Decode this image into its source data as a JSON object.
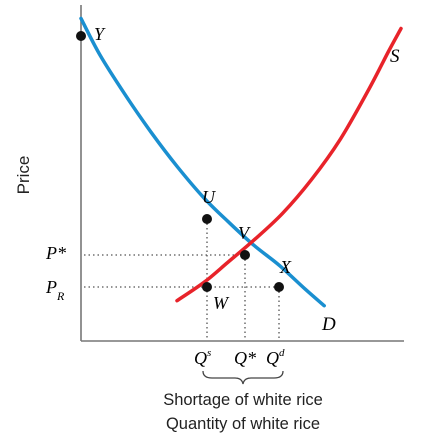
{
  "chart_data": {
    "type": "line",
    "title": "",
    "xlabel": "Quantity of white rice",
    "ylabel": "Price",
    "xlim": [
      0,
      10
    ],
    "ylim": [
      0,
      10
    ],
    "series": [
      {
        "name": "D",
        "color": "#1a8fd0",
        "points": [
          [
            0,
            9.6
          ],
          [
            0.6,
            8.5
          ],
          [
            1.4,
            7.3
          ],
          [
            2.2,
            6.2
          ],
          [
            3,
            5.2
          ],
          [
            3.85,
            4.25
          ],
          [
            4.6,
            3.55
          ],
          [
            5.4,
            2.85
          ],
          [
            6.2,
            2.25
          ],
          [
            7.0,
            1.55
          ],
          [
            7.6,
            1.05
          ]
        ]
      },
      {
        "name": "S",
        "color": "#e8232a",
        "points": [
          [
            3.0,
            1.2
          ],
          [
            3.85,
            1.75
          ],
          [
            4.6,
            2.35
          ],
          [
            5.4,
            3.0
          ],
          [
            6.3,
            3.8
          ],
          [
            7.2,
            4.8
          ],
          [
            8.1,
            6.0
          ],
          [
            9.0,
            7.5
          ],
          [
            9.6,
            8.6
          ],
          [
            10.0,
            9.3
          ]
        ]
      }
    ],
    "points": [
      {
        "label": "Y",
        "x": 0,
        "y": 9.6
      },
      {
        "label": "U",
        "x": 3.85,
        "y": 4.25
      },
      {
        "label": "V",
        "x": 4.6,
        "y": 2.35
      },
      {
        "label": "X",
        "x": 6.2,
        "y": 1.75
      },
      {
        "label": "W",
        "x": 3.85,
        "y": 1.75
      }
    ],
    "curve_labels": {
      "supply": "S",
      "demand": "D"
    },
    "price_labels": {
      "equilibrium": "P*",
      "regulated_main": "P",
      "regulated_sub": "R"
    },
    "quantity_labels": {
      "supplied": "Q",
      "supplied_sup": "s",
      "equilibrium": "Q*",
      "demanded": "Q",
      "demanded_sup": "d"
    },
    "annotation": "Shortage of white rice"
  }
}
